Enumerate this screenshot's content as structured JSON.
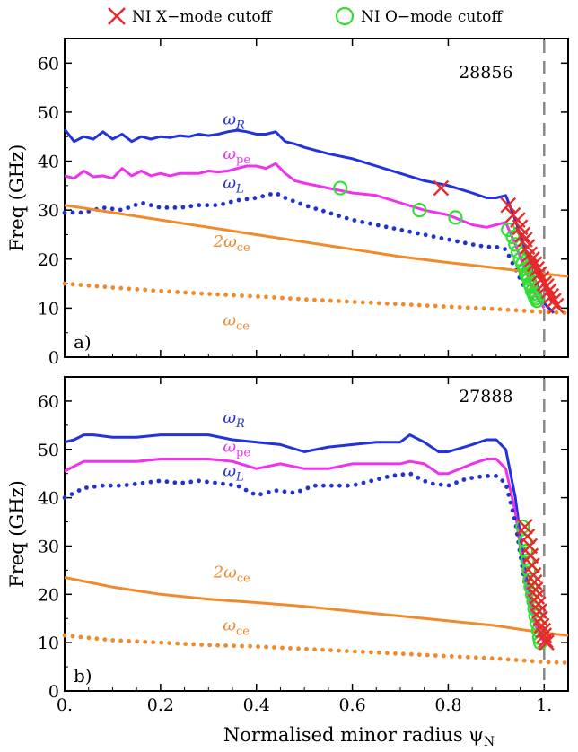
{
  "legend": {
    "items": [
      {
        "label": "NI X−mode cutoff",
        "marker": "cross",
        "color": "#e8292b"
      },
      {
        "label": "NI O−mode cutoff",
        "marker": "circle",
        "color": "#33dd33"
      }
    ]
  },
  "xlabel": "Normalised minor radius ψ",
  "xlabel_sub": "N",
  "colors": {
    "omega_R": "#2233dd",
    "omega_pe": "#ee33ee",
    "omega_L": "#2233cc",
    "omega_ce": "#f08a2a",
    "separatrix": "#888888"
  },
  "chart_data": [
    {
      "type": "line",
      "panel": "a)",
      "shot": "28856",
      "ylabel": "Freq (GHz)",
      "xlim": [
        0,
        1.05
      ],
      "ylim": [
        0,
        65
      ],
      "xticks": [
        "0.",
        "0.2",
        "0.4",
        "0.6",
        "0.8",
        "1."
      ],
      "yticks": [
        "0",
        "10",
        "20",
        "30",
        "40",
        "50",
        "60"
      ],
      "separatrix_x": 1.0,
      "series": [
        {
          "name": "ωR",
          "style": "solid",
          "color": "#2233dd",
          "x": [
            0,
            0.02,
            0.04,
            0.06,
            0.08,
            0.1,
            0.12,
            0.14,
            0.16,
            0.18,
            0.2,
            0.22,
            0.24,
            0.26,
            0.28,
            0.3,
            0.32,
            0.34,
            0.36,
            0.38,
            0.4,
            0.42,
            0.44,
            0.46,
            0.48,
            0.5,
            0.55,
            0.6,
            0.65,
            0.7,
            0.75,
            0.8,
            0.85,
            0.88,
            0.9,
            0.92,
            0.94,
            0.96,
            0.98,
            1.0,
            1.02
          ],
          "y": [
            46.5,
            44,
            45,
            44.5,
            46,
            44.5,
            45.5,
            44,
            45,
            44.5,
            45,
            44.8,
            45.2,
            45,
            45.5,
            45.2,
            45.5,
            46,
            46.3,
            46,
            45.5,
            45.5,
            46,
            44,
            43.5,
            42.8,
            41.5,
            40.5,
            39,
            37.5,
            36,
            35,
            33.5,
            32.5,
            32.5,
            33,
            28,
            22,
            16,
            11,
            9
          ]
        },
        {
          "name": "ωpe",
          "style": "solid",
          "color": "#ee33ee",
          "x": [
            0,
            0.02,
            0.04,
            0.06,
            0.08,
            0.1,
            0.12,
            0.14,
            0.16,
            0.18,
            0.2,
            0.22,
            0.24,
            0.26,
            0.28,
            0.3,
            0.32,
            0.34,
            0.36,
            0.38,
            0.4,
            0.42,
            0.44,
            0.46,
            0.48,
            0.5,
            0.55,
            0.6,
            0.65,
            0.7,
            0.75,
            0.8,
            0.85,
            0.88,
            0.9,
            0.92,
            0.94,
            0.96,
            0.98,
            1.0
          ],
          "y": [
            37,
            36.5,
            38,
            36.8,
            37,
            36.5,
            38.5,
            37,
            38,
            37,
            37.5,
            37,
            37.5,
            37.5,
            37.5,
            38,
            37.8,
            38,
            38.5,
            39,
            39,
            38.5,
            39.5,
            37.5,
            36,
            35.5,
            34.5,
            33.5,
            33,
            31.5,
            30,
            29,
            27,
            26.5,
            27,
            27.5,
            23,
            18,
            13,
            10
          ]
        },
        {
          "name": "ωL",
          "style": "dotted",
          "color": "#2233cc",
          "x": [
            0,
            0.04,
            0.08,
            0.12,
            0.16,
            0.2,
            0.24,
            0.28,
            0.32,
            0.36,
            0.4,
            0.44,
            0.46,
            0.5,
            0.55,
            0.6,
            0.65,
            0.7,
            0.75,
            0.8,
            0.85,
            0.88,
            0.9,
            0.92,
            0.94,
            0.96,
            0.98
          ],
          "y": [
            29.5,
            29.5,
            30.5,
            30,
            31.5,
            30.5,
            30.5,
            31,
            31,
            32,
            32.5,
            33.5,
            32.5,
            31,
            29.5,
            28,
            27,
            26,
            25,
            24,
            23,
            22.5,
            22.5,
            22,
            18,
            14,
            11
          ]
        },
        {
          "name": "2ωce",
          "style": "solid",
          "color": "#f08a2a",
          "x": [
            0,
            0.1,
            0.2,
            0.3,
            0.4,
            0.5,
            0.6,
            0.7,
            0.8,
            0.9,
            1.0,
            1.05
          ],
          "y": [
            31,
            29.5,
            28,
            26.5,
            25,
            23.5,
            22,
            20.5,
            19.3,
            18.2,
            17,
            16.5
          ]
        },
        {
          "name": "ωce",
          "style": "dotted",
          "color": "#f08a2a",
          "x": [
            0,
            0.1,
            0.2,
            0.3,
            0.4,
            0.5,
            0.6,
            0.7,
            0.8,
            0.9,
            1.0,
            1.05
          ],
          "y": [
            15,
            14.2,
            13.5,
            12.9,
            12.4,
            11.8,
            11.3,
            10.8,
            10.3,
            9.8,
            9.2,
            9
          ]
        }
      ],
      "curve_labels": [
        {
          "series": "omega_R",
          "base": "ω",
          "sub": "R",
          "x": 0.33,
          "y": 47.5,
          "color": "#2233dd"
        },
        {
          "series": "omega_pe",
          "base": "ω",
          "sub": "pe",
          "x": 0.33,
          "y": 40.5,
          "color": "#ee33ee"
        },
        {
          "series": "omega_L",
          "base": "ω",
          "sub": "L",
          "x": 0.33,
          "y": 34.5,
          "color": "#2233cc"
        },
        {
          "series": "2omega_ce",
          "base": "2ω",
          "sub": "ce",
          "x": 0.31,
          "y": 22.5,
          "color": "#f08a2a"
        },
        {
          "series": "omega_ce",
          "base": "ω",
          "sub": "ce",
          "x": 0.33,
          "y": 6.5,
          "color": "#f08a2a"
        }
      ],
      "x_cutoffs": {
        "x": [
          0.785,
          0.925,
          0.935,
          0.945,
          0.95,
          0.955,
          0.96,
          0.965,
          0.97,
          0.975,
          0.98,
          0.985,
          0.99,
          0.995,
          1.0,
          1.005,
          1.01,
          1.015,
          1.02,
          1.025
        ],
        "y": [
          34.5,
          31,
          29,
          28,
          26.5,
          25,
          24,
          22.5,
          21,
          20,
          19,
          18,
          17,
          16,
          15,
          14.5,
          13.5,
          12.5,
          11.5,
          10.5
        ]
      },
      "o_cutoffs": {
        "x": [
          0.575,
          0.74,
          0.815,
          0.925,
          0.935,
          0.94,
          0.945,
          0.95,
          0.955,
          0.96,
          0.962,
          0.965,
          0.968,
          0.97,
          0.972,
          0.975,
          0.978,
          0.98,
          0.982,
          0.985
        ],
        "y": [
          34.5,
          30,
          28.5,
          26,
          24.5,
          23,
          21.5,
          20,
          19,
          18,
          17,
          16.5,
          16,
          15,
          14.5,
          13.5,
          13,
          12.5,
          12,
          11.5
        ]
      }
    },
    {
      "type": "line",
      "panel": "b)",
      "shot": "27888",
      "ylabel": "Freq (GHz)",
      "xlim": [
        0,
        1.05
      ],
      "ylim": [
        0,
        65
      ],
      "xticks": [
        "0.",
        "0.2",
        "0.4",
        "0.6",
        "0.8",
        "1."
      ],
      "yticks": [
        "0",
        "10",
        "20",
        "30",
        "40",
        "50",
        "60"
      ],
      "separatrix_x": 1.0,
      "series": [
        {
          "name": "ωR",
          "style": "solid",
          "color": "#2233dd",
          "x": [
            0,
            0.02,
            0.04,
            0.06,
            0.1,
            0.15,
            0.2,
            0.25,
            0.3,
            0.35,
            0.4,
            0.45,
            0.5,
            0.55,
            0.6,
            0.65,
            0.7,
            0.72,
            0.75,
            0.78,
            0.8,
            0.85,
            0.88,
            0.9,
            0.92,
            0.94,
            0.96,
            0.98,
            1.0
          ],
          "y": [
            51.5,
            52,
            53,
            53,
            52.5,
            52.5,
            53,
            53,
            53,
            52,
            51.5,
            51,
            49.5,
            50.5,
            51,
            51.5,
            51.5,
            53,
            51.5,
            49.5,
            49.5,
            51,
            52,
            52,
            50,
            40,
            25,
            15,
            10
          ]
        },
        {
          "name": "ωpe",
          "style": "solid",
          "color": "#ee33ee",
          "x": [
            0,
            0.02,
            0.04,
            0.06,
            0.1,
            0.15,
            0.2,
            0.25,
            0.3,
            0.35,
            0.4,
            0.45,
            0.5,
            0.55,
            0.6,
            0.65,
            0.7,
            0.72,
            0.75,
            0.78,
            0.8,
            0.85,
            0.88,
            0.9,
            0.92,
            0.94,
            0.96,
            0.98,
            1.0
          ],
          "y": [
            45.5,
            46.5,
            47.5,
            47.5,
            47.5,
            47.5,
            48,
            48,
            48,
            47.5,
            46,
            47,
            46,
            46,
            47,
            47,
            47,
            47.5,
            47,
            45,
            45,
            47,
            48,
            48,
            46,
            37,
            23,
            14,
            10
          ]
        },
        {
          "name": "ωL",
          "style": "dotted",
          "color": "#2233cc",
          "x": [
            0,
            0.04,
            0.08,
            0.12,
            0.16,
            0.2,
            0.24,
            0.28,
            0.32,
            0.36,
            0.4,
            0.44,
            0.48,
            0.52,
            0.56,
            0.6,
            0.64,
            0.68,
            0.72,
            0.76,
            0.8,
            0.84,
            0.88,
            0.9,
            0.92,
            0.94,
            0.96
          ],
          "y": [
            40,
            42,
            42.5,
            42.5,
            43,
            43.5,
            43,
            43.5,
            43,
            42.5,
            40.5,
            41.5,
            41,
            42.5,
            42.5,
            42.5,
            43.5,
            44.5,
            45,
            43,
            42.5,
            44,
            44.5,
            44.5,
            43,
            35,
            22
          ]
        },
        {
          "name": "2ωce",
          "style": "solid",
          "color": "#f08a2a",
          "x": [
            0,
            0.1,
            0.2,
            0.3,
            0.4,
            0.5,
            0.6,
            0.7,
            0.8,
            0.9,
            1.0,
            1.05
          ],
          "y": [
            23.5,
            21.5,
            20,
            19,
            18.3,
            17.5,
            16.5,
            15.5,
            14.5,
            13.5,
            12,
            11.5
          ]
        },
        {
          "name": "ωce",
          "style": "dotted",
          "color": "#f08a2a",
          "x": [
            0,
            0.1,
            0.2,
            0.3,
            0.4,
            0.5,
            0.6,
            0.7,
            0.8,
            0.9,
            1.0,
            1.05
          ],
          "y": [
            11.5,
            10.5,
            10,
            9.5,
            9.2,
            8.7,
            8.2,
            7.7,
            7.2,
            6.7,
            6,
            5.8
          ]
        }
      ],
      "curve_labels": [
        {
          "series": "omega_R",
          "base": "ω",
          "sub": "R",
          "x": 0.33,
          "y": 55.5,
          "color": "#2233dd"
        },
        {
          "series": "omega_pe",
          "base": "ω",
          "sub": "pe",
          "x": 0.33,
          "y": 49.5,
          "color": "#ee33ee"
        },
        {
          "series": "omega_L",
          "base": "ω",
          "sub": "L",
          "x": 0.33,
          "y": 44.5,
          "color": "#2233cc"
        },
        {
          "series": "2omega_ce",
          "base": "2ω",
          "sub": "ce",
          "x": 0.31,
          "y": 23.5,
          "color": "#f08a2a"
        },
        {
          "series": "omega_ce",
          "base": "ω",
          "sub": "ce",
          "x": 0.33,
          "y": 12.5,
          "color": "#f08a2a"
        }
      ],
      "x_cutoffs": {
        "x": [
          0.96,
          0.965,
          0.97,
          0.972,
          0.975,
          0.978,
          0.98,
          0.982,
          0.985,
          0.988,
          0.99,
          0.992,
          0.995,
          0.998,
          1.0,
          1.003,
          1.005
        ],
        "y": [
          34,
          32,
          30,
          28,
          26,
          24,
          22.5,
          21,
          19.5,
          18,
          16.5,
          15,
          13.5,
          12.5,
          11.5,
          10.5,
          10
        ]
      },
      "o_cutoffs": {
        "x": [
          0.955,
          0.96,
          0.962,
          0.965,
          0.968,
          0.97,
          0.972,
          0.975,
          0.978,
          0.98,
          0.982,
          0.985,
          0.988,
          0.99,
          0.992
        ],
        "y": [
          34,
          31,
          29,
          27,
          25,
          23,
          21.5,
          20,
          18.5,
          17,
          15.5,
          14,
          12.5,
          11,
          10
        ]
      }
    }
  ]
}
